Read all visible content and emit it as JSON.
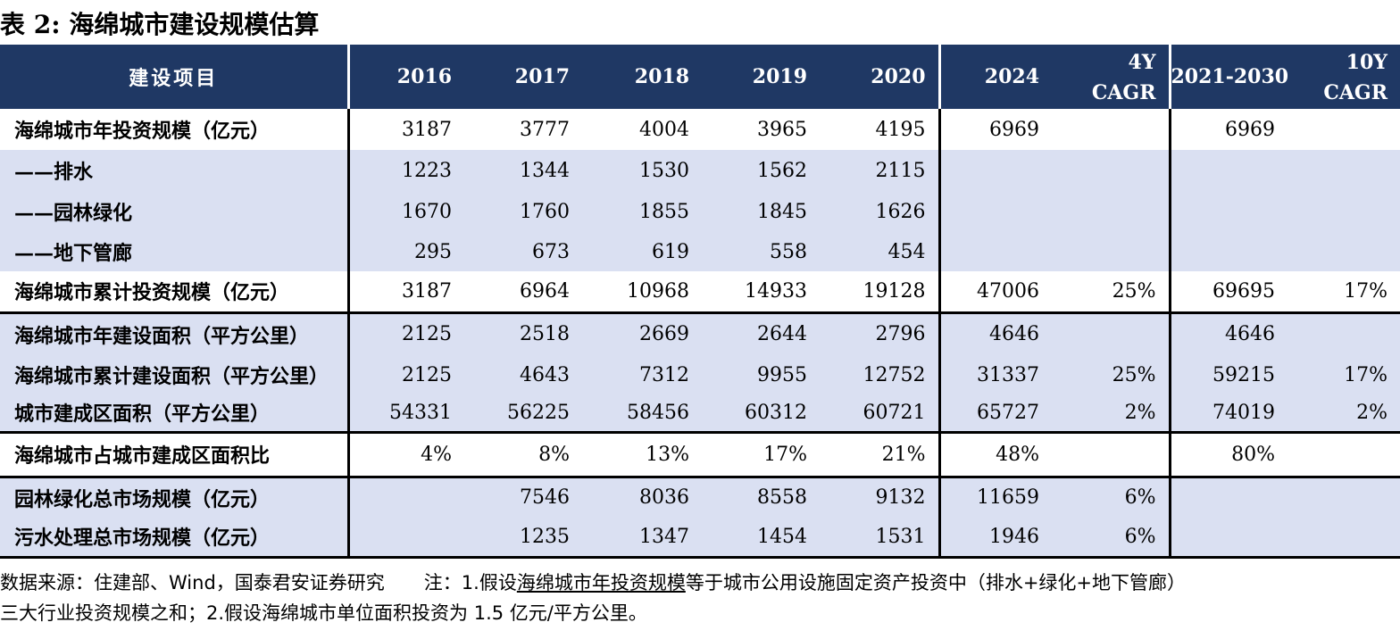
{
  "title": "表 2:  海绵城市建设规模估算",
  "header": {
    "name": "建设项目",
    "y2016": "2016",
    "y2017": "2017",
    "y2018": "2018",
    "y2019": "2019",
    "y2020": "2020",
    "y2024": "2024",
    "cagr4_l1": "4Y",
    "cagr4_l2": "CAGR",
    "range": "2021-2030",
    "cagr10_l1": "10Y",
    "cagr10_l2": "CAGR"
  },
  "rows": [
    {
      "name": "海绵城市年投资规模（亿元）",
      "v": [
        "3187",
        "3777",
        "4004",
        "3965",
        "4195",
        "6969",
        "",
        "6969",
        ""
      ]
    },
    {
      "name": "——排水",
      "v": [
        "1223",
        "1344",
        "1530",
        "1562",
        "2115",
        "",
        "",
        "",
        ""
      ]
    },
    {
      "name": "——园林绿化",
      "v": [
        "1670",
        "1760",
        "1855",
        "1845",
        "1626",
        "",
        "",
        "",
        ""
      ]
    },
    {
      "name": "——地下管廊",
      "v": [
        "295",
        "673",
        "619",
        "558",
        "454",
        "",
        "",
        "",
        ""
      ]
    },
    {
      "name": "海绵城市累计投资规模（亿元）",
      "v": [
        "3187",
        "6964",
        "10968",
        "14933",
        "19128",
        "47006",
        "25%",
        "69695",
        "17%"
      ]
    },
    {
      "name": "海绵城市年建设面积（平方公里）",
      "v": [
        "2125",
        "2518",
        "2669",
        "2644",
        "2796",
        "4646",
        "",
        "4646",
        ""
      ]
    },
    {
      "name": "海绵城市累计建设面积（平方公里）",
      "v": [
        "2125",
        "4643",
        "7312",
        "9955",
        "12752",
        "31337",
        "25%",
        "59215",
        "17%"
      ]
    },
    {
      "name": "城市建成区面积（平方公里）",
      "v": [
        "54331",
        "56225",
        "58456",
        "60312",
        "60721",
        "65727",
        "2%",
        "74019",
        "2%"
      ]
    },
    {
      "name": "海绵城市占城市建成区面积比",
      "v": [
        "4%",
        "8%",
        "13%",
        "17%",
        "21%",
        "48%",
        "",
        "80%",
        ""
      ]
    },
    {
      "name": "园林绿化总市场规模（亿元）",
      "v": [
        "",
        "7546",
        "8036",
        "8558",
        "9132",
        "11659",
        "6%",
        "",
        ""
      ]
    },
    {
      "name": "污水处理总市场规模（亿元）",
      "v": [
        "",
        "1235",
        "1347",
        "1454",
        "1531",
        "1946",
        "6%",
        "",
        ""
      ]
    }
  ],
  "footnote": {
    "source": "数据来源：住建部、Wind，国泰君安证券研究",
    "note_prefix": "注：1.假设",
    "note_underlined": "海绵城市年投资规模",
    "note_rest": "等于城市公用设施固定资产投资中（排水+绿化+地下管廊）",
    "line2": "三大行业投资规模之和；2.假设海绵城市单位面积投资为 1.5 亿元/平方公里。"
  },
  "colors": {
    "header_bg": "#1f3864",
    "band_bg": "#dae0f2",
    "rule": "#000000"
  }
}
